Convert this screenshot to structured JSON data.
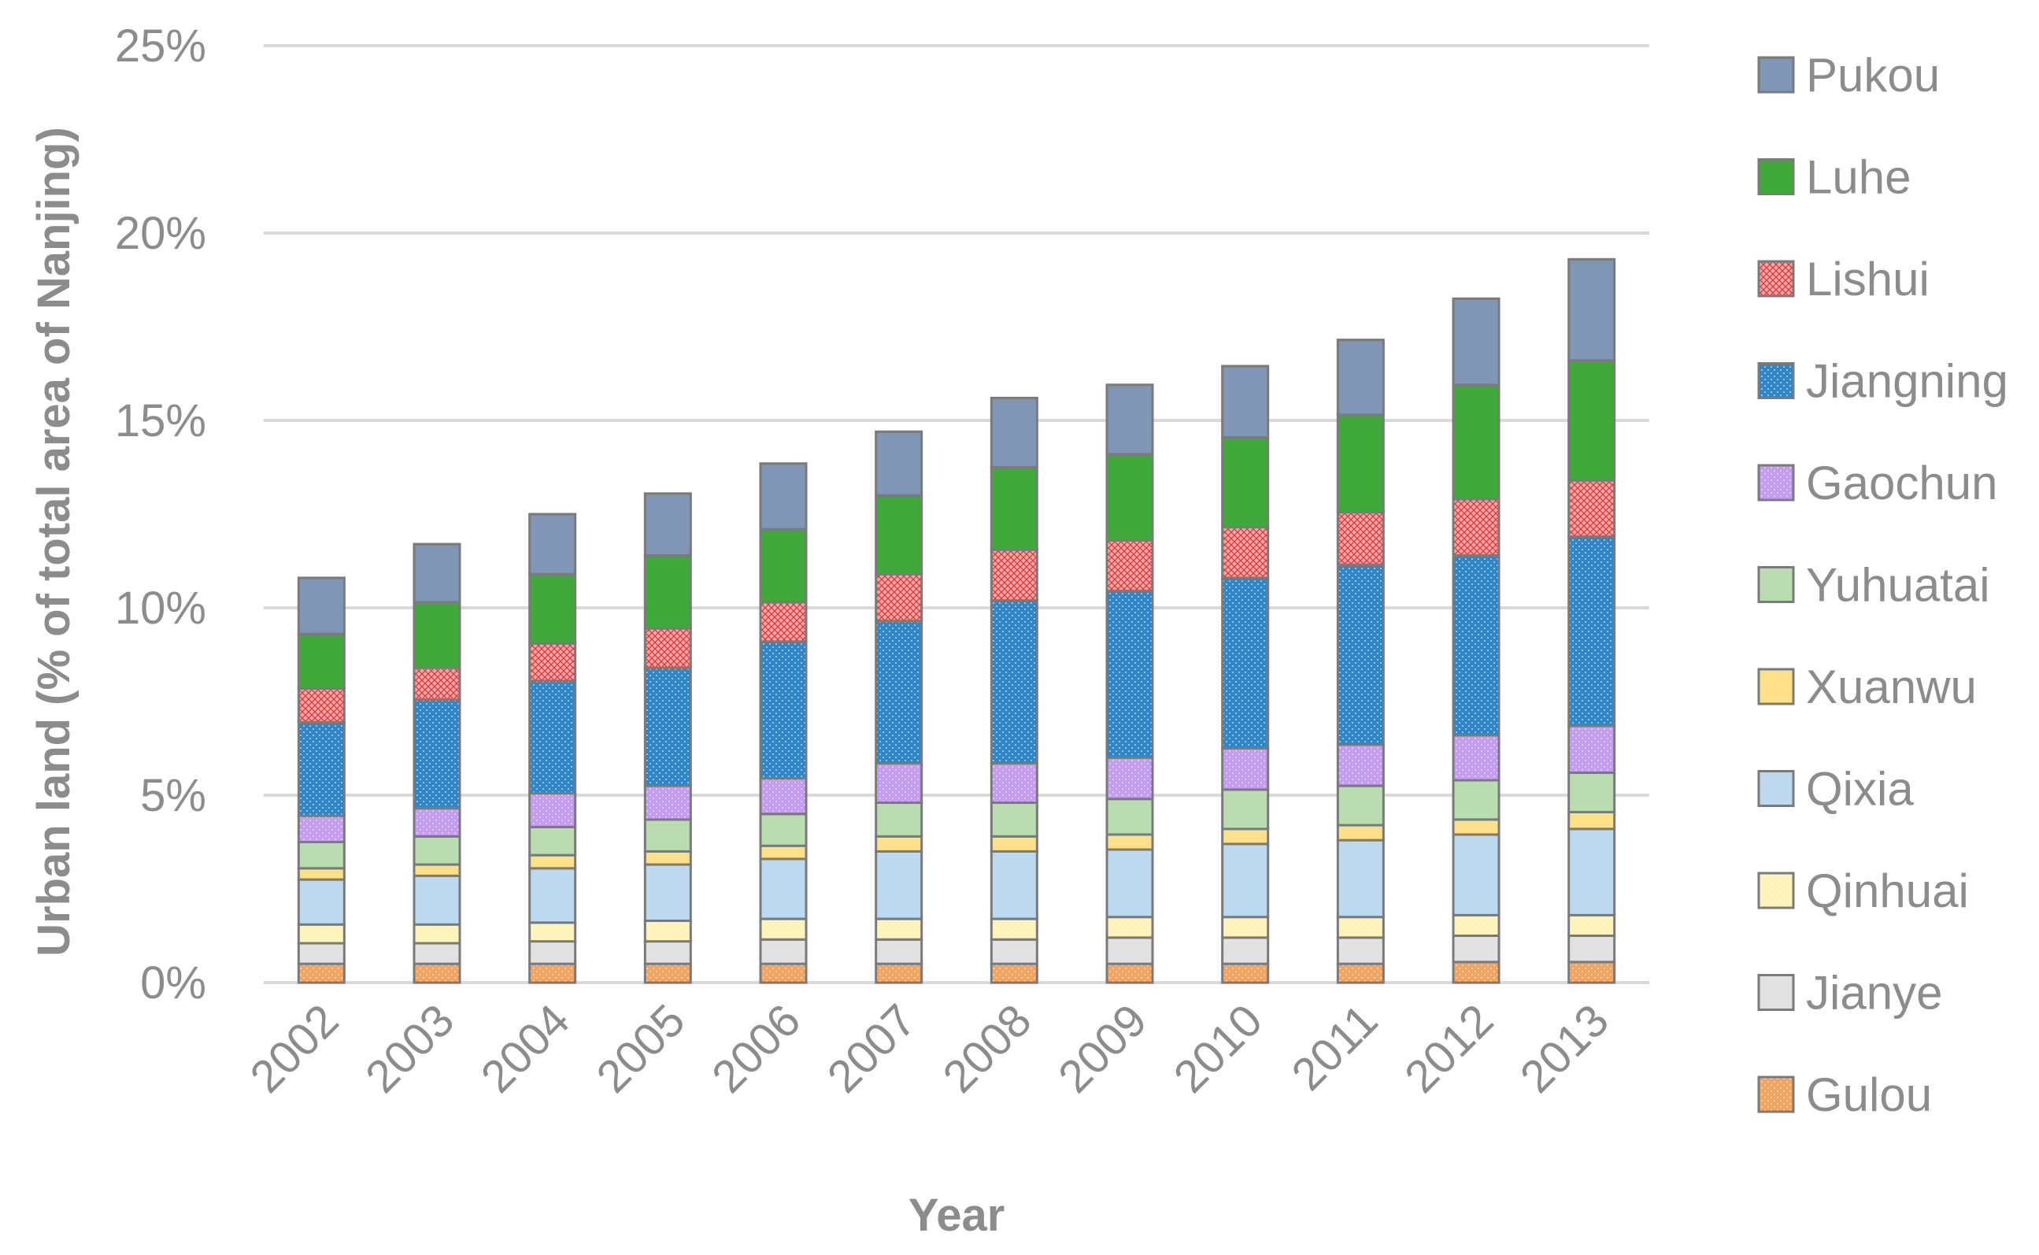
{
  "chart_data": {
    "type": "bar",
    "stacked": true,
    "title": "",
    "xlabel": "Year",
    "ylabel": "Urban land (% of total area of Nanjing)",
    "ylim": [
      0,
      25
    ],
    "yticks": [
      0,
      5,
      10,
      15,
      20,
      25
    ],
    "ytick_labels": [
      "0%",
      "5%",
      "10%",
      "15%",
      "20%",
      "25%"
    ],
    "grid": true,
    "legend_position": "right",
    "categories": [
      "2002",
      "2003",
      "2004",
      "2005",
      "2006",
      "2007",
      "2008",
      "2009",
      "2010",
      "2011",
      "2012",
      "2013"
    ],
    "series": [
      {
        "name": "Gulou",
        "color": "#f4a460",
        "pattern": "dots",
        "values": [
          0.5,
          0.5,
          0.5,
          0.5,
          0.5,
          0.5,
          0.5,
          0.5,
          0.5,
          0.5,
          0.55,
          0.55
        ]
      },
      {
        "name": "Jianye",
        "color": "#e2e2e2",
        "pattern": "none",
        "values": [
          0.55,
          0.55,
          0.6,
          0.6,
          0.65,
          0.65,
          0.65,
          0.7,
          0.7,
          0.7,
          0.7,
          0.7
        ]
      },
      {
        "name": "Qinhuai",
        "color": "#fff3b8",
        "pattern": "dots",
        "values": [
          0.5,
          0.5,
          0.5,
          0.55,
          0.55,
          0.55,
          0.55,
          0.55,
          0.55,
          0.55,
          0.55,
          0.55
        ]
      },
      {
        "name": "Qixia",
        "color": "#bcd9f0",
        "pattern": "none",
        "values": [
          1.2,
          1.3,
          1.45,
          1.5,
          1.6,
          1.8,
          1.8,
          1.8,
          1.95,
          2.05,
          2.15,
          2.3
        ]
      },
      {
        "name": "Xuanwu",
        "color": "#ffe08a",
        "pattern": "none",
        "values": [
          0.3,
          0.3,
          0.35,
          0.35,
          0.35,
          0.4,
          0.4,
          0.4,
          0.4,
          0.4,
          0.4,
          0.45
        ]
      },
      {
        "name": "Yuhuatai",
        "color": "#b9ddb0",
        "pattern": "none",
        "values": [
          0.7,
          0.75,
          0.75,
          0.85,
          0.85,
          0.9,
          0.9,
          0.95,
          1.05,
          1.05,
          1.05,
          1.05
        ]
      },
      {
        "name": "Gaochun",
        "color": "#c49cf2",
        "pattern": "dots",
        "values": [
          0.7,
          0.75,
          0.9,
          0.9,
          0.95,
          1.05,
          1.05,
          1.1,
          1.1,
          1.1,
          1.2,
          1.25
        ]
      },
      {
        "name": "Jiangning",
        "color": "#2f86c8",
        "pattern": "dots",
        "values": [
          2.5,
          2.9,
          3.0,
          3.15,
          3.65,
          3.8,
          4.35,
          4.45,
          4.55,
          4.8,
          4.8,
          5.05
        ]
      },
      {
        "name": "Lishui",
        "color": "#f3a6a6",
        "pattern": "cross",
        "values": [
          0.9,
          0.85,
          1.0,
          1.05,
          1.05,
          1.25,
          1.35,
          1.35,
          1.35,
          1.4,
          1.5,
          1.5
        ]
      },
      {
        "name": "Luhe",
        "color": "#3faa3a",
        "pattern": "none",
        "values": [
          1.45,
          1.75,
          1.85,
          1.95,
          1.95,
          2.1,
          2.2,
          2.3,
          2.4,
          2.6,
          3.05,
          3.2
        ]
      },
      {
        "name": "Pukou",
        "color": "#7f97b4",
        "pattern": "none",
        "values": [
          1.5,
          1.55,
          1.6,
          1.65,
          1.75,
          1.7,
          1.85,
          1.85,
          1.9,
          2.0,
          2.3,
          2.7
        ]
      }
    ]
  }
}
